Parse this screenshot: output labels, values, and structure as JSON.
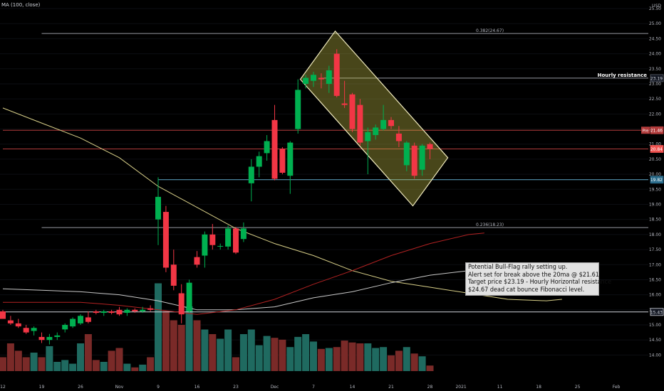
{
  "indicator_label": "MA (100, close)",
  "chart_data": {
    "type": "candlestick",
    "y_axis": {
      "currency": "USD",
      "ylim": [
        13.75,
        25.5
      ],
      "ticks": [
        14.0,
        14.5,
        15.0,
        15.5,
        16.0,
        16.5,
        17.0,
        17.5,
        18.0,
        18.5,
        19.0,
        19.5,
        20.0,
        20.5,
        21.0,
        21.5,
        22.0,
        22.5,
        23.0,
        23.5,
        24.0,
        24.5,
        25.0,
        25.5
      ]
    },
    "x_axis": {
      "ticks": [
        {
          "label": "12",
          "index": 0
        },
        {
          "label": "19",
          "index": 5
        },
        {
          "label": "26",
          "index": 10
        },
        {
          "label": "Nov",
          "index": 15
        },
        {
          "label": "9",
          "index": 20
        },
        {
          "label": "16",
          "index": 25
        },
        {
          "label": "23",
          "index": 30
        },
        {
          "label": "Dec",
          "index": 35
        },
        {
          "label": "7",
          "index": 40
        },
        {
          "label": "14",
          "index": 45
        },
        {
          "label": "21",
          "index": 50
        },
        {
          "label": "28",
          "index": 55
        },
        {
          "label": "2021",
          "index": 59
        },
        {
          "label": "11",
          "index": 64
        },
        {
          "label": "18",
          "index": 69
        },
        {
          "label": "25",
          "index": 74
        },
        {
          "label": "Feb",
          "index": 79
        }
      ]
    },
    "candles": [
      {
        "o": 15.45,
        "h": 15.5,
        "l": 15.2,
        "c": 15.2
      },
      {
        "o": 15.15,
        "h": 15.3,
        "l": 15.0,
        "c": 15.05
      },
      {
        "o": 15.05,
        "h": 15.2,
        "l": 14.9,
        "c": 14.95
      },
      {
        "o": 14.9,
        "h": 15.0,
        "l": 14.7,
        "c": 14.75
      },
      {
        "o": 14.8,
        "h": 14.95,
        "l": 14.65,
        "c": 14.9
      },
      {
        "o": 14.6,
        "h": 14.75,
        "l": 14.4,
        "c": 14.5
      },
      {
        "o": 14.5,
        "h": 14.7,
        "l": 14.35,
        "c": 14.6
      },
      {
        "o": 14.6,
        "h": 14.75,
        "l": 14.5,
        "c": 14.65
      },
      {
        "o": 14.85,
        "h": 15.05,
        "l": 14.75,
        "c": 15.0
      },
      {
        "o": 14.95,
        "h": 15.25,
        "l": 14.9,
        "c": 15.2
      },
      {
        "o": 15.05,
        "h": 15.35,
        "l": 15.0,
        "c": 15.3
      },
      {
        "o": 15.25,
        "h": 15.45,
        "l": 15.05,
        "c": 15.1
      },
      {
        "o": 15.45,
        "h": 15.5,
        "l": 15.35,
        "c": 15.4
      },
      {
        "o": 15.4,
        "h": 15.5,
        "l": 15.3,
        "c": 15.45
      },
      {
        "o": 15.45,
        "h": 15.5,
        "l": 15.35,
        "c": 15.4
      },
      {
        "o": 15.5,
        "h": 15.6,
        "l": 15.3,
        "c": 15.35
      },
      {
        "o": 15.4,
        "h": 15.55,
        "l": 15.3,
        "c": 15.5
      },
      {
        "o": 15.5,
        "h": 15.55,
        "l": 15.4,
        "c": 15.45
      },
      {
        "o": 15.45,
        "h": 15.6,
        "l": 15.4,
        "c": 15.5
      },
      {
        "o": 15.55,
        "h": 15.65,
        "l": 15.45,
        "c": 15.5
      },
      {
        "o": 18.5,
        "h": 19.9,
        "l": 17.65,
        "c": 19.25
      },
      {
        "o": 18.75,
        "h": 18.95,
        "l": 16.75,
        "c": 16.9
      },
      {
        "o": 17.0,
        "h": 17.5,
        "l": 16.15,
        "c": 16.3
      },
      {
        "o": 16.05,
        "h": 16.35,
        "l": 15.05,
        "c": 15.35
      },
      {
        "o": 15.45,
        "h": 16.5,
        "l": 15.4,
        "c": 16.4
      },
      {
        "o": 17.25,
        "h": 17.45,
        "l": 16.9,
        "c": 17.0
      },
      {
        "o": 17.3,
        "h": 18.1,
        "l": 16.9,
        "c": 18.0
      },
      {
        "o": 18.0,
        "h": 18.35,
        "l": 17.5,
        "c": 17.65
      },
      {
        "o": 17.6,
        "h": 17.7,
        "l": 17.5,
        "c": 17.62
      },
      {
        "o": 17.6,
        "h": 18.3,
        "l": 17.5,
        "c": 18.2
      },
      {
        "o": 18.2,
        "h": 18.25,
        "l": 17.35,
        "c": 17.4
      },
      {
        "o": 17.85,
        "h": 18.4,
        "l": 17.75,
        "c": 18.2
      },
      {
        "o": 19.7,
        "h": 20.5,
        "l": 19.1,
        "c": 20.25
      },
      {
        "o": 20.25,
        "h": 20.75,
        "l": 19.9,
        "c": 20.6
      },
      {
        "o": 20.7,
        "h": 21.3,
        "l": 20.45,
        "c": 21.1
      },
      {
        "o": 21.8,
        "h": 22.3,
        "l": 19.8,
        "c": 19.85
      },
      {
        "o": 20.85,
        "h": 20.9,
        "l": 20.0,
        "c": 20.05
      },
      {
        "o": 19.95,
        "h": 21.1,
        "l": 19.35,
        "c": 21.05
      },
      {
        "o": 21.5,
        "h": 23.15,
        "l": 21.35,
        "c": 22.8
      },
      {
        "o": 23.0,
        "h": 23.3,
        "l": 22.85,
        "c": 23.2
      },
      {
        "o": 23.1,
        "h": 23.4,
        "l": 22.9,
        "c": 23.3
      },
      {
        "o": 23.2,
        "h": 23.35,
        "l": 22.85,
        "c": 23.15
      },
      {
        "o": 23.0,
        "h": 23.6,
        "l": 22.7,
        "c": 23.45
      },
      {
        "o": 24.0,
        "h": 24.15,
        "l": 22.55,
        "c": 22.6
      },
      {
        "o": 22.35,
        "h": 23.1,
        "l": 22.2,
        "c": 22.3
      },
      {
        "o": 22.65,
        "h": 22.7,
        "l": 21.4,
        "c": 21.5
      },
      {
        "o": 22.3,
        "h": 22.5,
        "l": 20.95,
        "c": 21.05
      },
      {
        "o": 21.1,
        "h": 21.55,
        "l": 20.0,
        "c": 21.4
      },
      {
        "o": 21.3,
        "h": 21.65,
        "l": 21.15,
        "c": 21.55
      },
      {
        "o": 21.5,
        "h": 22.3,
        "l": 21.45,
        "c": 21.8
      },
      {
        "o": 21.8,
        "h": 21.9,
        "l": 21.5,
        "c": 21.6
      },
      {
        "o": 21.35,
        "h": 21.6,
        "l": 20.9,
        "c": 21.1
      },
      {
        "o": 20.3,
        "h": 21.1,
        "l": 20.1,
        "c": 21.05
      },
      {
        "o": 20.95,
        "h": 21.05,
        "l": 19.85,
        "c": 19.95
      },
      {
        "o": 20.15,
        "h": 21.0,
        "l": 19.95,
        "c": 20.95
      },
      {
        "o": 21.0,
        "h": 21.05,
        "l": 20.5,
        "c": 20.84
      }
    ],
    "volume": [
      0.15,
      0.3,
      0.22,
      0.15,
      0.2,
      0.15,
      0.27,
      0.1,
      0.12,
      0.08,
      0.3,
      0.4,
      0.12,
      0.1,
      0.22,
      0.25,
      0.08,
      0.04,
      0.07,
      0.15,
      0.95,
      0.65,
      0.55,
      0.5,
      0.7,
      0.55,
      0.45,
      0.4,
      0.35,
      0.45,
      0.15,
      0.4,
      0.45,
      0.28,
      0.38,
      0.36,
      0.34,
      0.26,
      0.37,
      0.4,
      0.32,
      0.24,
      0.25,
      0.26,
      0.33,
      0.31,
      0.3,
      0.3,
      0.25,
      0.26,
      0.17,
      0.22,
      0.26,
      0.19,
      0.16,
      0.06
    ],
    "moving_averages": [
      {
        "color": "#d8cf88",
        "points": [
          [
            0,
            22.2
          ],
          [
            5,
            21.7
          ],
          [
            10,
            21.2
          ],
          [
            15,
            20.55
          ],
          [
            20,
            19.6
          ],
          [
            25,
            18.9
          ],
          [
            30,
            18.2
          ],
          [
            35,
            17.7
          ],
          [
            40,
            17.3
          ],
          [
            45,
            16.8
          ],
          [
            50,
            16.45
          ],
          [
            55,
            16.25
          ],
          [
            60,
            16.05
          ],
          [
            65,
            15.85
          ],
          [
            70,
            15.8
          ],
          [
            72,
            15.85
          ]
        ]
      },
      {
        "color": "#c8c8c8",
        "points": [
          [
            0,
            16.2
          ],
          [
            5,
            16.15
          ],
          [
            10,
            16.1
          ],
          [
            15,
            16.0
          ],
          [
            20,
            15.8
          ],
          [
            25,
            15.5
          ],
          [
            30,
            15.5
          ],
          [
            35,
            15.6
          ],
          [
            40,
            15.9
          ],
          [
            45,
            16.1
          ],
          [
            50,
            16.4
          ],
          [
            55,
            16.65
          ],
          [
            60,
            16.8
          ],
          [
            62,
            16.9
          ]
        ]
      },
      {
        "color": "#b22222",
        "points": [
          [
            0,
            15.75
          ],
          [
            5,
            15.75
          ],
          [
            10,
            15.75
          ],
          [
            15,
            15.65
          ],
          [
            20,
            15.5
          ],
          [
            25,
            15.35
          ],
          [
            30,
            15.5
          ],
          [
            35,
            15.85
          ],
          [
            40,
            16.35
          ],
          [
            45,
            16.8
          ],
          [
            50,
            17.3
          ],
          [
            55,
            17.7
          ],
          [
            60,
            18.0
          ],
          [
            62,
            18.05
          ]
        ]
      }
    ],
    "horizontal_levels": [
      {
        "price": 24.67,
        "label": "0.382(24.67)",
        "from_index": 5,
        "color": "#9598a1"
      },
      {
        "price": 23.19,
        "label": "Hourly resistance",
        "from_index": 41,
        "color": "#9598a1"
      },
      {
        "price": 21.46,
        "label": "",
        "from_index": 0,
        "color": "#b23b3b"
      },
      {
        "price": 20.84,
        "label": "",
        "from_index": 0,
        "color": "#b23b3b"
      },
      {
        "price": 19.82,
        "label": "",
        "from_index": 20,
        "color": "#5fa8c8"
      },
      {
        "price": 18.23,
        "label": "0.236(18.23)",
        "from_index": 5,
        "color": "#9598a1"
      },
      {
        "price": 15.43,
        "label": "",
        "from_index": 0,
        "color": "#d1d4dc"
      }
    ],
    "price_tags": [
      {
        "price": 23.19,
        "text": "23.19",
        "bg": "#131722",
        "fg": "#d1d4dc",
        "border": "#5a5e6a"
      },
      {
        "price": 21.46,
        "text": "21.46",
        "prefix": "Pre",
        "bg": "#b23b3b",
        "fg": "#ffffff"
      },
      {
        "price": 20.84,
        "text": "20.84",
        "bg": "#ef5350",
        "fg": "#ffffff"
      },
      {
        "price": 19.82,
        "text": "19.82",
        "bg": "#2a6b8a",
        "fg": "#ffffff"
      },
      {
        "price": 15.43,
        "text": "15.43",
        "bg": "#131722",
        "fg": "#d1d4dc",
        "border": "#d1d4dc"
      }
    ],
    "flag_channel": {
      "corners": [
        [
          38.3,
          23.15
        ],
        [
          42.8,
          24.75
        ],
        [
          57.3,
          20.55
        ],
        [
          52.8,
          18.95
        ]
      ],
      "fill": "rgba(207,201,74,0.35)",
      "stroke": "#f1ebbe"
    },
    "colors": {
      "up": "#26a69a",
      "down": "#ef5350",
      "up_bar": "#00b050",
      "down_bar": "#f23645",
      "vol_up": "#1f6a60",
      "vol_down": "#7a2a28"
    }
  },
  "annotation_lines": [
    "Potential Bull-Flag rally setting up.",
    "Alert set for break above the 20ma @ $21.61",
    "Target price $23.19 - Hourly Horizontal resistance",
    "$24.67 dead cat bounce Fibonacci level."
  ]
}
